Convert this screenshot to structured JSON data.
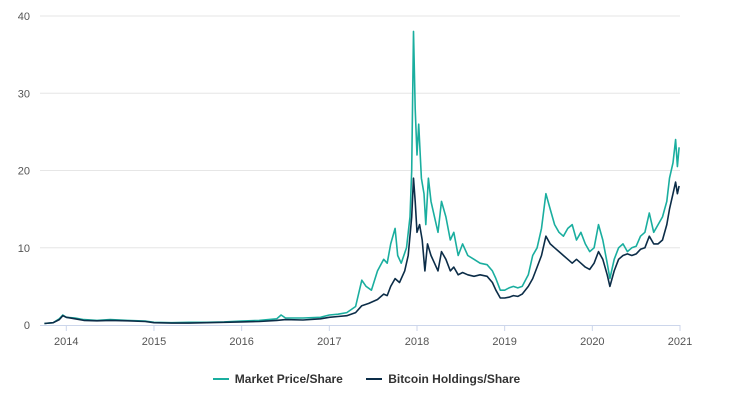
{
  "chart_data": {
    "type": "line",
    "title": "",
    "xlabel": "",
    "ylabel": "",
    "xlim": [
      2013.7,
      2021.0
    ],
    "ylim": [
      0,
      40
    ],
    "y_ticks": [
      "0",
      "10",
      "20",
      "30",
      "40"
    ],
    "x_ticks": [
      "2014",
      "2015",
      "2016",
      "2017",
      "2018",
      "2019",
      "2020",
      "2021"
    ],
    "grid": "horizontal",
    "legend_position": "bottom-center",
    "series": [
      {
        "name": "Market Price/Share",
        "color": "#1aae9f",
        "points": [
          [
            2013.75,
            0.2
          ],
          [
            2013.85,
            0.3
          ],
          [
            2013.92,
            0.8
          ],
          [
            2013.96,
            1.3
          ],
          [
            2014.0,
            1.0
          ],
          [
            2014.1,
            0.9
          ],
          [
            2014.2,
            0.7
          ],
          [
            2014.35,
            0.6
          ],
          [
            2014.5,
            0.7
          ],
          [
            2014.7,
            0.6
          ],
          [
            2014.9,
            0.5
          ],
          [
            2015.0,
            0.35
          ],
          [
            2015.2,
            0.3
          ],
          [
            2015.4,
            0.35
          ],
          [
            2015.6,
            0.35
          ],
          [
            2015.8,
            0.4
          ],
          [
            2016.0,
            0.5
          ],
          [
            2016.2,
            0.6
          ],
          [
            2016.4,
            0.8
          ],
          [
            2016.45,
            1.3
          ],
          [
            2016.5,
            0.9
          ],
          [
            2016.7,
            0.9
          ],
          [
            2016.9,
            1.0
          ],
          [
            2017.0,
            1.3
          ],
          [
            2017.1,
            1.4
          ],
          [
            2017.2,
            1.6
          ],
          [
            2017.3,
            2.4
          ],
          [
            2017.37,
            5.8
          ],
          [
            2017.42,
            5.0
          ],
          [
            2017.48,
            4.5
          ],
          [
            2017.55,
            7.0
          ],
          [
            2017.62,
            8.5
          ],
          [
            2017.66,
            8.0
          ],
          [
            2017.7,
            10.5
          ],
          [
            2017.75,
            12.5
          ],
          [
            2017.78,
            9.0
          ],
          [
            2017.82,
            8.0
          ],
          [
            2017.88,
            10.0
          ],
          [
            2017.92,
            14.0
          ],
          [
            2017.94,
            20.0
          ],
          [
            2017.96,
            38.0
          ],
          [
            2017.98,
            28.0
          ],
          [
            2018.0,
            22.0
          ],
          [
            2018.02,
            26.0
          ],
          [
            2018.05,
            19.0
          ],
          [
            2018.08,
            17.0
          ],
          [
            2018.1,
            13.0
          ],
          [
            2018.13,
            19.0
          ],
          [
            2018.16,
            16.0
          ],
          [
            2018.2,
            14.0
          ],
          [
            2018.24,
            12.0
          ],
          [
            2018.28,
            16.0
          ],
          [
            2018.33,
            14.0
          ],
          [
            2018.38,
            11.0
          ],
          [
            2018.42,
            12.0
          ],
          [
            2018.47,
            9.0
          ],
          [
            2018.52,
            10.5
          ],
          [
            2018.58,
            9.0
          ],
          [
            2018.65,
            8.5
          ],
          [
            2018.72,
            8.0
          ],
          [
            2018.8,
            7.8
          ],
          [
            2018.86,
            7.0
          ],
          [
            2018.9,
            6.0
          ],
          [
            2018.95,
            4.5
          ],
          [
            2019.0,
            4.5
          ],
          [
            2019.05,
            4.8
          ],
          [
            2019.1,
            5.0
          ],
          [
            2019.15,
            4.8
          ],
          [
            2019.2,
            5.0
          ],
          [
            2019.27,
            6.5
          ],
          [
            2019.32,
            9.0
          ],
          [
            2019.37,
            10.0
          ],
          [
            2019.42,
            12.5
          ],
          [
            2019.47,
            17.0
          ],
          [
            2019.52,
            15.0
          ],
          [
            2019.57,
            13.0
          ],
          [
            2019.62,
            12.0
          ],
          [
            2019.67,
            11.5
          ],
          [
            2019.72,
            12.5
          ],
          [
            2019.77,
            13.0
          ],
          [
            2019.82,
            11.0
          ],
          [
            2019.87,
            12.0
          ],
          [
            2019.92,
            10.5
          ],
          [
            2019.97,
            9.5
          ],
          [
            2020.02,
            10.0
          ],
          [
            2020.07,
            13.0
          ],
          [
            2020.12,
            11.0
          ],
          [
            2020.17,
            8.0
          ],
          [
            2020.2,
            6.0
          ],
          [
            2020.25,
            8.5
          ],
          [
            2020.3,
            10.0
          ],
          [
            2020.35,
            10.5
          ],
          [
            2020.4,
            9.5
          ],
          [
            2020.45,
            10.0
          ],
          [
            2020.5,
            10.2
          ],
          [
            2020.55,
            11.5
          ],
          [
            2020.6,
            12.0
          ],
          [
            2020.65,
            14.5
          ],
          [
            2020.7,
            12.0
          ],
          [
            2020.75,
            13.0
          ],
          [
            2020.8,
            14.0
          ],
          [
            2020.85,
            16.0
          ],
          [
            2020.88,
            19.0
          ],
          [
            2020.92,
            21.0
          ],
          [
            2020.95,
            24.0
          ],
          [
            2020.97,
            20.5
          ],
          [
            2020.99,
            23.0
          ]
        ]
      },
      {
        "name": "Bitcoin Holdings/Share",
        "color": "#0c2d48",
        "points": [
          [
            2013.75,
            0.2
          ],
          [
            2013.85,
            0.3
          ],
          [
            2013.92,
            0.7
          ],
          [
            2013.96,
            1.2
          ],
          [
            2014.0,
            1.0
          ],
          [
            2014.1,
            0.8
          ],
          [
            2014.2,
            0.6
          ],
          [
            2014.35,
            0.55
          ],
          [
            2014.5,
            0.6
          ],
          [
            2014.7,
            0.55
          ],
          [
            2014.9,
            0.45
          ],
          [
            2015.0,
            0.3
          ],
          [
            2015.2,
            0.25
          ],
          [
            2015.4,
            0.25
          ],
          [
            2015.6,
            0.3
          ],
          [
            2015.8,
            0.35
          ],
          [
            2016.0,
            0.4
          ],
          [
            2016.2,
            0.45
          ],
          [
            2016.4,
            0.6
          ],
          [
            2016.5,
            0.7
          ],
          [
            2016.7,
            0.65
          ],
          [
            2016.9,
            0.8
          ],
          [
            2017.0,
            1.0
          ],
          [
            2017.1,
            1.1
          ],
          [
            2017.2,
            1.2
          ],
          [
            2017.3,
            1.6
          ],
          [
            2017.37,
            2.5
          ],
          [
            2017.45,
            2.8
          ],
          [
            2017.55,
            3.3
          ],
          [
            2017.62,
            4.0
          ],
          [
            2017.66,
            3.8
          ],
          [
            2017.7,
            5.0
          ],
          [
            2017.75,
            6.0
          ],
          [
            2017.8,
            5.5
          ],
          [
            2017.86,
            7.0
          ],
          [
            2017.9,
            9.0
          ],
          [
            2017.94,
            14.0
          ],
          [
            2017.96,
            19.0
          ],
          [
            2017.98,
            16.0
          ],
          [
            2018.0,
            12.0
          ],
          [
            2018.03,
            13.0
          ],
          [
            2018.06,
            11.0
          ],
          [
            2018.09,
            7.0
          ],
          [
            2018.12,
            10.5
          ],
          [
            2018.16,
            9.0
          ],
          [
            2018.2,
            8.0
          ],
          [
            2018.24,
            7.0
          ],
          [
            2018.28,
            9.5
          ],
          [
            2018.33,
            8.5
          ],
          [
            2018.38,
            7.0
          ],
          [
            2018.42,
            7.5
          ],
          [
            2018.47,
            6.5
          ],
          [
            2018.52,
            6.8
          ],
          [
            2018.58,
            6.5
          ],
          [
            2018.65,
            6.3
          ],
          [
            2018.72,
            6.5
          ],
          [
            2018.8,
            6.3
          ],
          [
            2018.86,
            5.5
          ],
          [
            2018.9,
            4.5
          ],
          [
            2018.95,
            3.5
          ],
          [
            2019.0,
            3.5
          ],
          [
            2019.05,
            3.6
          ],
          [
            2019.1,
            3.8
          ],
          [
            2019.15,
            3.7
          ],
          [
            2019.2,
            4.0
          ],
          [
            2019.27,
            5.0
          ],
          [
            2019.32,
            6.0
          ],
          [
            2019.37,
            7.5
          ],
          [
            2019.42,
            9.0
          ],
          [
            2019.47,
            11.5
          ],
          [
            2019.52,
            10.5
          ],
          [
            2019.57,
            10.0
          ],
          [
            2019.62,
            9.5
          ],
          [
            2019.67,
            9.0
          ],
          [
            2019.72,
            8.5
          ],
          [
            2019.77,
            8.0
          ],
          [
            2019.82,
            8.5
          ],
          [
            2019.87,
            8.0
          ],
          [
            2019.92,
            7.5
          ],
          [
            2019.97,
            7.2
          ],
          [
            2020.02,
            8.0
          ],
          [
            2020.07,
            9.5
          ],
          [
            2020.12,
            8.5
          ],
          [
            2020.17,
            6.5
          ],
          [
            2020.2,
            5.0
          ],
          [
            2020.25,
            7.0
          ],
          [
            2020.3,
            8.5
          ],
          [
            2020.35,
            9.0
          ],
          [
            2020.4,
            9.2
          ],
          [
            2020.45,
            9.0
          ],
          [
            2020.5,
            9.2
          ],
          [
            2020.55,
            9.8
          ],
          [
            2020.6,
            10.0
          ],
          [
            2020.65,
            11.5
          ],
          [
            2020.7,
            10.5
          ],
          [
            2020.75,
            10.5
          ],
          [
            2020.8,
            11.0
          ],
          [
            2020.85,
            13.0
          ],
          [
            2020.88,
            15.0
          ],
          [
            2020.92,
            17.0
          ],
          [
            2020.95,
            18.5
          ],
          [
            2020.97,
            17.0
          ],
          [
            2020.99,
            18.0
          ]
        ]
      }
    ]
  }
}
